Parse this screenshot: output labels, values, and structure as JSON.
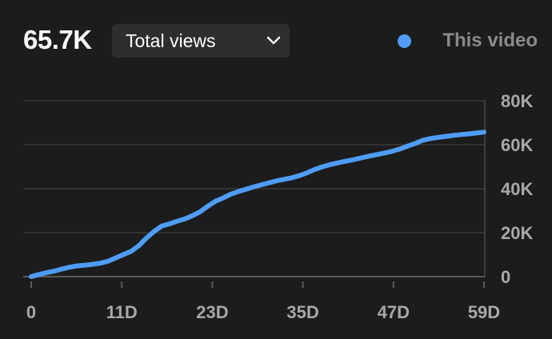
{
  "header": {
    "total_value": "65.7K",
    "metric_selector": {
      "selected": "Total views",
      "icon": "chevron-down-icon"
    },
    "legend": {
      "label": "This video",
      "color": "#4e9cf5"
    }
  },
  "chart_data": {
    "type": "line",
    "title": "",
    "xlabel": "",
    "ylabel": "",
    "x_tick_labels": [
      "0",
      "11D",
      "23D",
      "35D",
      "47D",
      "59D"
    ],
    "x_tick_values": [
      0,
      11.8,
      23.6,
      35.4,
      47.2,
      59
    ],
    "y_tick_labels": [
      "0",
      "20K",
      "40K",
      "60K",
      "80K"
    ],
    "y_tick_values": [
      0,
      20000,
      40000,
      60000,
      80000
    ],
    "xlim": [
      0,
      59
    ],
    "ylim": [
      0,
      80000
    ],
    "grid": true,
    "y_axis_side": "right",
    "series": [
      {
        "name": "This video",
        "color": "#4e9cf5",
        "x": [
          0,
          1,
          2,
          3,
          4,
          5,
          6,
          7,
          8,
          9,
          10,
          11,
          12,
          13,
          14,
          15,
          16,
          17,
          18,
          19,
          20,
          21,
          22,
          23,
          24,
          25,
          26,
          27,
          28,
          29,
          30,
          31,
          32,
          33,
          34,
          35,
          36,
          37,
          38,
          39,
          40,
          41,
          42,
          43,
          44,
          45,
          46,
          47,
          48,
          49,
          50,
          51,
          52,
          53,
          54,
          55,
          56,
          57,
          58,
          59
        ],
        "values": [
          0,
          1000,
          1800,
          2500,
          3500,
          4300,
          4900,
          5200,
          5600,
          6100,
          7000,
          8500,
          10000,
          11500,
          14000,
          17500,
          20500,
          23000,
          24000,
          25200,
          26200,
          27700,
          29500,
          32000,
          34300,
          35800,
          37500,
          38700,
          39800,
          40800,
          41800,
          42700,
          43600,
          44300,
          45000,
          46000,
          47300,
          48800,
          50000,
          51000,
          51800,
          52500,
          53200,
          54000,
          54800,
          55500,
          56200,
          57000,
          58000,
          59300,
          60500,
          62000,
          62800,
          63300,
          63800,
          64200,
          64600,
          64900,
          65300,
          65700
        ]
      }
    ]
  }
}
